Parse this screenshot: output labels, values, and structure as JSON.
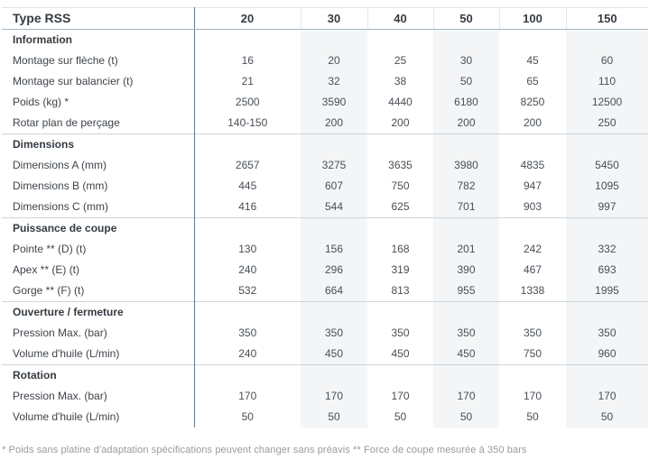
{
  "table": {
    "title": "Type RSS",
    "columns": [
      "20",
      "30",
      "40",
      "50",
      "100",
      "150"
    ],
    "striped_column_indices": [
      1,
      3,
      5
    ],
    "sections": [
      {
        "name": "Information",
        "rows": [
          {
            "label": "Montage sur flèche (t)",
            "values": [
              "16",
              "20",
              "25",
              "30",
              "45",
              "60"
            ]
          },
          {
            "label": "Montage sur balancier (t)",
            "values": [
              "21",
              "32",
              "38",
              "50",
              "65",
              "110"
            ]
          },
          {
            "label": "Poids (kg) *",
            "values": [
              "2500",
              "3590",
              "4440",
              "6180",
              "8250",
              "12500"
            ]
          },
          {
            "label": "Rotar plan de perçage",
            "values": [
              "140-150",
              "200",
              "200",
              "200",
              "200",
              "250"
            ]
          }
        ]
      },
      {
        "name": "Dimensions",
        "rows": [
          {
            "label": "Dimensions A (mm)",
            "values": [
              "2657",
              "3275",
              "3635",
              "3980",
              "4835",
              "5450"
            ]
          },
          {
            "label": "Dimensions B (mm)",
            "values": [
              "445",
              "607",
              "750",
              "782",
              "947",
              "1095"
            ]
          },
          {
            "label": "Dimensions C (mm)",
            "values": [
              "416",
              "544",
              "625",
              "701",
              "903",
              "997"
            ]
          }
        ]
      },
      {
        "name": "Puissance de coupe",
        "rows": [
          {
            "label": "Pointe ** (D) (t)",
            "values": [
              "130",
              "156",
              "168",
              "201",
              "242",
              "332"
            ]
          },
          {
            "label": "Apex ** (E) (t)",
            "values": [
              "240",
              "296",
              "319",
              "390",
              "467",
              "693"
            ]
          },
          {
            "label": "Gorge ** (F) (t)",
            "values": [
              "532",
              "664",
              "813",
              "955",
              "1338",
              "1995"
            ]
          }
        ]
      },
      {
        "name": "Ouverture / fermeture",
        "rows": [
          {
            "label": "Pression Max. (bar)",
            "values": [
              "350",
              "350",
              "350",
              "350",
              "350",
              "350"
            ]
          },
          {
            "label": "Volume d'huile (L/min)",
            "values": [
              "240",
              "450",
              "450",
              "450",
              "750",
              "960"
            ]
          }
        ]
      },
      {
        "name": "Rotation",
        "rows": [
          {
            "label": "Pression Max. (bar)",
            "values": [
              "170",
              "170",
              "170",
              "170",
              "170",
              "170"
            ]
          },
          {
            "label": "Volume d'huile (L/min)",
            "values": [
              "50",
              "50",
              "50",
              "50",
              "50",
              "50"
            ]
          }
        ]
      }
    ],
    "footnote": "* Poids sans platine d'adaptation spécifications peuvent changer sans préavis ** Force de coupe mesurée à 350 bars"
  },
  "colors": {
    "label_divider": "#647a8f",
    "header_rule": "#a4b4c3",
    "section_rule": "#ccd5dd",
    "column_stripe": "#f4f5f6",
    "heading_text": "#343b42",
    "body_text": "#3e444a",
    "value_text": "#494f55",
    "footnote_text": "#9a9a9a"
  }
}
